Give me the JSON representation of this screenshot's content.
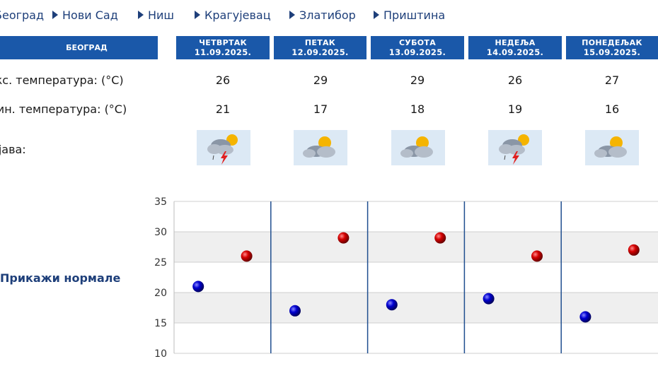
{
  "city_nav": [
    {
      "label": "Београд"
    },
    {
      "label": "Нови Сад"
    },
    {
      "label": "Ниш"
    },
    {
      "label": "Крагујевац"
    },
    {
      "label": "Златибор"
    },
    {
      "label": "Приштина"
    }
  ],
  "header": {
    "city": "БЕОГРАД",
    "days": [
      {
        "name": "ЧЕТВРТАК",
        "date": "11.09.2025."
      },
      {
        "name": "ПЕТАК",
        "date": "12.09.2025."
      },
      {
        "name": "СУБОТА",
        "date": "13.09.2025."
      },
      {
        "name": "НЕДЕЉА",
        "date": "14.09.2025."
      },
      {
        "name": "ПОНЕДЕЉАК",
        "date": "15.09.2025."
      }
    ]
  },
  "rows": {
    "max_label": "Макс. температура: (°C)",
    "min_label": "Мин. температура: (°C)",
    "cond_label": "Појава:",
    "max_values": [
      "26",
      "29",
      "29",
      "26",
      "27"
    ],
    "min_values": [
      "21",
      "17",
      "18",
      "19",
      "16"
    ],
    "conditions": [
      "thunderstorm-icon",
      "partly-cloudy-icon",
      "partly-cloudy-icon",
      "thunderstorm-icon",
      "partly-cloudy-icon"
    ]
  },
  "show_normals": "Прикажи нормале",
  "colors": {
    "header_bg": "#1a58a9",
    "nav_text": "#1e3f7a",
    "max_dot": "#cc0000",
    "min_dot": "#0000cc"
  },
  "chart_data": {
    "type": "scatter",
    "categories": [
      "11.09.2025.",
      "12.09.2025.",
      "13.09.2025.",
      "14.09.2025.",
      "15.09.2025."
    ],
    "series": [
      {
        "values": [
          26,
          29,
          29,
          26,
          27
        ],
        "color": "#cc0000"
      },
      {
        "values": [
          21,
          17,
          18,
          19,
          16
        ],
        "color": "#0000cc"
      }
    ],
    "yticks": [
      "35",
      "30",
      "25",
      "20",
      "15",
      "10"
    ],
    "ylim": [
      10,
      35
    ],
    "grid": true,
    "title": "",
    "xlabel": "",
    "ylabel": ""
  }
}
